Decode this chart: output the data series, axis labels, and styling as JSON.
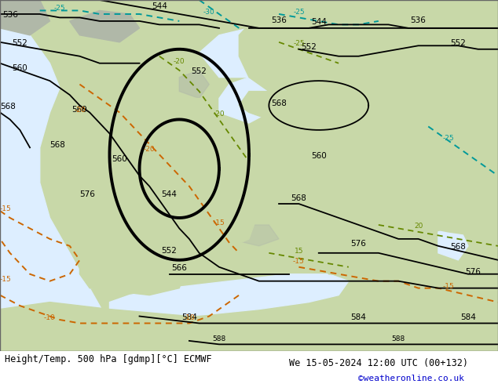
{
  "title_left": "Height/Temp. 500 hPa [gdmp][°C] ECMWF",
  "title_right": "We 15-05-2024 12:00 UTC (00+132)",
  "credit": "©weatheronline.co.uk",
  "figsize": [
    6.34,
    4.9
  ],
  "dpi": 100,
  "footer_fontsize": 8.5,
  "label_fontsize": 7.5,
  "land_color": "#c8d8a8",
  "sea_color": "#ddeeff",
  "gray_color": "#b0b8a8",
  "white_color": "#f4f4f4",
  "black_thick": 2.8,
  "black_thin": 1.3,
  "orange_lw": 1.4,
  "green_lw": 1.3,
  "cyan_lw": 1.4,
  "orange_color": "#cc6600",
  "green_color": "#668800",
  "cyan_color": "#009999",
  "blue_color": "#0000cc"
}
